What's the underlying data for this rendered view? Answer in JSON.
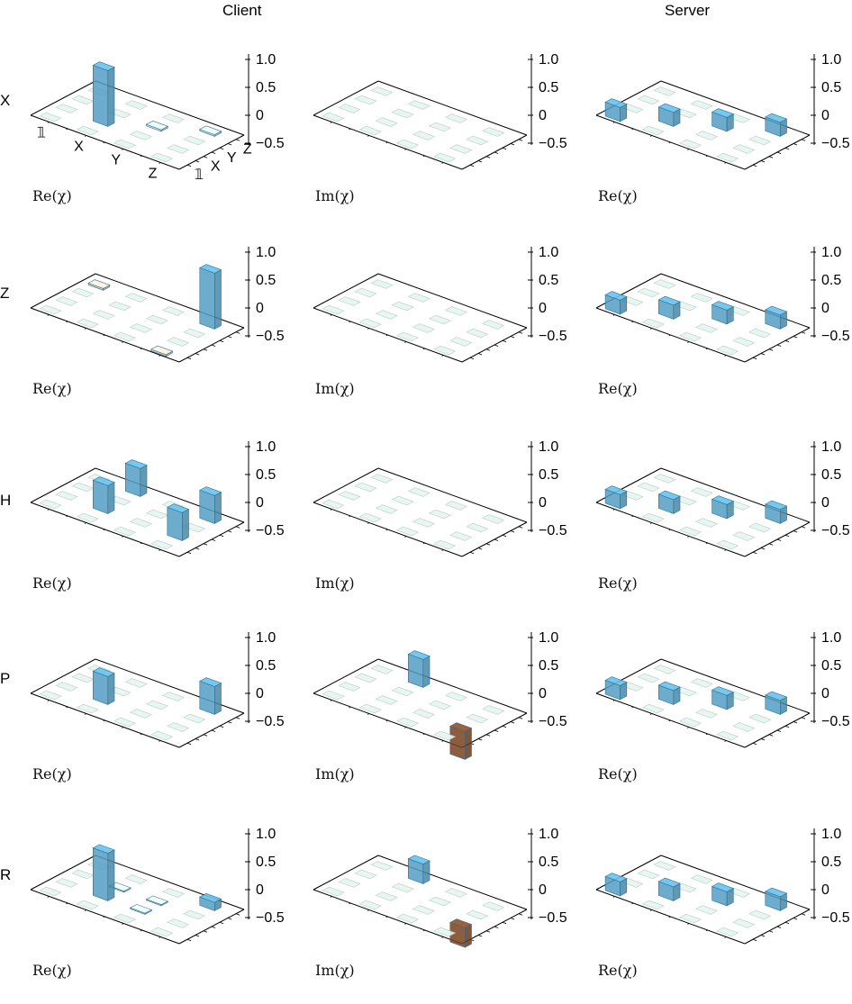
{
  "figure": {
    "column_titles": [
      "Client",
      "",
      "Server"
    ],
    "row_labels": [
      "X",
      "Z",
      "H",
      "P",
      "R"
    ]
  },
  "colors": {
    "positive_bar": "#5fb4de",
    "negative_bar": "#8a4a22",
    "base_tile": "#e6f5ef",
    "small_blue_tile": "#ddf3fb",
    "small_brown_tile": "#f0e0cf"
  },
  "chart_data": [
    {
      "type": "bar3d",
      "row": "X",
      "column": "Client",
      "label": "Re(χ)",
      "zlim": [
        -0.5,
        1.0
      ],
      "zticks": [
        "1.0",
        "0.5",
        "0",
        "−0.5"
      ],
      "x_labels": [
        "𝟙",
        "X",
        "Y",
        "Z"
      ],
      "y_labels": [
        "𝟙",
        "X",
        "Y",
        "Z"
      ],
      "values": [
        [
          0,
          0,
          0,
          0
        ],
        [
          0,
          1.0,
          0,
          0
        ],
        [
          0,
          0,
          0.03,
          0
        ],
        [
          0,
          0,
          0,
          0.03
        ]
      ]
    },
    {
      "type": "bar3d",
      "row": "X",
      "column": "",
      "label": "Im(χ)",
      "zlim": [
        -0.5,
        1.0
      ],
      "zticks": [
        "1.0",
        "0.5",
        "0",
        "−0.5"
      ],
      "values": [
        [
          0,
          0,
          0,
          0
        ],
        [
          0,
          0,
          0,
          0
        ],
        [
          0,
          0,
          0,
          0
        ],
        [
          0,
          0,
          0,
          0
        ]
      ]
    },
    {
      "type": "bar3d",
      "row": "X",
      "column": "Server",
      "label": "Re(χ)",
      "zlim": [
        -0.5,
        1.0
      ],
      "zticks": [
        "1.0",
        "0.5",
        "0",
        "−0.5"
      ],
      "values": [
        [
          0.25,
          0,
          0,
          0
        ],
        [
          0,
          0.25,
          0,
          0
        ],
        [
          0,
          0,
          0.25,
          0
        ],
        [
          0,
          0,
          0,
          0.25
        ]
      ]
    },
    {
      "type": "bar3d",
      "row": "Z",
      "column": "Client",
      "label": "Re(χ)",
      "zlim": [
        -0.5,
        1.0
      ],
      "zticks": [
        "1.0",
        "0.5",
        "0",
        "−0.5"
      ],
      "values": [
        [
          0,
          0,
          0,
          -0.03
        ],
        [
          0,
          0,
          0,
          0
        ],
        [
          0,
          0,
          0,
          0
        ],
        [
          -0.03,
          0,
          0,
          1.0
        ]
      ]
    },
    {
      "type": "bar3d",
      "row": "Z",
      "column": "",
      "label": "Im(χ)",
      "zlim": [
        -0.5,
        1.0
      ],
      "zticks": [
        "1.0",
        "0.5",
        "0",
        "−0.5"
      ],
      "values": [
        [
          0,
          0,
          0,
          0
        ],
        [
          0,
          0,
          0,
          0
        ],
        [
          0,
          0,
          0,
          0
        ],
        [
          0,
          0,
          0,
          0
        ]
      ]
    },
    {
      "type": "bar3d",
      "row": "Z",
      "column": "Server",
      "label": "Re(χ)",
      "zlim": [
        -0.5,
        1.0
      ],
      "zticks": [
        "1.0",
        "0.5",
        "0",
        "−0.5"
      ],
      "values": [
        [
          0.25,
          0,
          0,
          0
        ],
        [
          0,
          0.25,
          0,
          0
        ],
        [
          0,
          0,
          0.25,
          0
        ],
        [
          0,
          0,
          0,
          0.25
        ]
      ]
    },
    {
      "type": "bar3d",
      "row": "H",
      "column": "Client",
      "label": "Re(χ)",
      "zlim": [
        -0.5,
        1.0
      ],
      "zticks": [
        "1.0",
        "0.5",
        "0",
        "−0.5"
      ],
      "values": [
        [
          0,
          0,
          0,
          0
        ],
        [
          0,
          0.5,
          0,
          0.5
        ],
        [
          0,
          0,
          0,
          0
        ],
        [
          0,
          0.5,
          0,
          0.5
        ]
      ]
    },
    {
      "type": "bar3d",
      "row": "H",
      "column": "",
      "label": "Im(χ)",
      "zlim": [
        -0.5,
        1.0
      ],
      "zticks": [
        "1.0",
        "0.5",
        "0",
        "−0.5"
      ],
      "values": [
        [
          0,
          0,
          0,
          0
        ],
        [
          0,
          0,
          0,
          0
        ],
        [
          0,
          0,
          0,
          0
        ],
        [
          0,
          0,
          0,
          0
        ]
      ]
    },
    {
      "type": "bar3d",
      "row": "H",
      "column": "Server",
      "label": "Re(χ)",
      "zlim": [
        -0.5,
        1.0
      ],
      "zticks": [
        "1.0",
        "0.5",
        "0",
        "−0.5"
      ],
      "values": [
        [
          0.25,
          0,
          0,
          0
        ],
        [
          0,
          0.25,
          0,
          0
        ],
        [
          0,
          0,
          0.25,
          0
        ],
        [
          0,
          0,
          0,
          0.25
        ]
      ]
    },
    {
      "type": "bar3d",
      "row": "P",
      "column": "Client",
      "label": "Re(χ)",
      "zlim": [
        -0.5,
        1.0
      ],
      "zticks": [
        "1.0",
        "0.5",
        "0",
        "−0.5"
      ],
      "values": [
        [
          0,
          0,
          0,
          0
        ],
        [
          0,
          0.5,
          0,
          0
        ],
        [
          0,
          0,
          0,
          0
        ],
        [
          0,
          0,
          0,
          0.5
        ]
      ]
    },
    {
      "type": "bar3d",
      "row": "P",
      "column": "",
      "label": "Im(χ)",
      "zlim": [
        -0.5,
        1.0
      ],
      "zticks": [
        "1.0",
        "0.5",
        "0",
        "−0.5"
      ],
      "values": [
        [
          0,
          0,
          0,
          0
        ],
        [
          0,
          0,
          0,
          0.5
        ],
        [
          0,
          0,
          0,
          0
        ],
        [
          0,
          -0.5,
          0,
          0
        ]
      ]
    },
    {
      "type": "bar3d",
      "row": "P",
      "column": "Server",
      "label": "Re(χ)",
      "zlim": [
        -0.5,
        1.0
      ],
      "zticks": [
        "1.0",
        "0.5",
        "0",
        "−0.5"
      ],
      "values": [
        [
          0.25,
          0,
          0,
          0
        ],
        [
          0,
          0.25,
          0,
          0
        ],
        [
          0,
          0,
          0.25,
          0
        ],
        [
          0,
          0,
          0,
          0.25
        ]
      ]
    },
    {
      "type": "bar3d",
      "row": "R",
      "column": "Client",
      "label": "Re(χ)",
      "zlim": [
        -0.5,
        1.0
      ],
      "zticks": [
        "1.0",
        "0.5",
        "0",
        "−0.5"
      ],
      "values": [
        [
          0,
          0,
          0,
          0
        ],
        [
          0,
          0.85,
          0.02,
          0
        ],
        [
          0,
          0.02,
          0.02,
          0
        ],
        [
          0,
          0,
          0,
          0.15
        ]
      ]
    },
    {
      "type": "bar3d",
      "row": "R",
      "column": "",
      "label": "Im(χ)",
      "zlim": [
        -0.5,
        1.0
      ],
      "zticks": [
        "1.0",
        "0.5",
        "0",
        "−0.5"
      ],
      "values": [
        [
          0,
          0,
          0,
          0
        ],
        [
          0,
          0,
          0,
          0.35
        ],
        [
          0,
          0,
          0,
          0
        ],
        [
          0,
          -0.35,
          0,
          0
        ]
      ]
    },
    {
      "type": "bar3d",
      "row": "R",
      "column": "Server",
      "label": "Re(χ)",
      "zlim": [
        -0.5,
        1.0
      ],
      "zticks": [
        "1.0",
        "0.5",
        "0",
        "−0.5"
      ],
      "values": [
        [
          0.25,
          0,
          0,
          0
        ],
        [
          0,
          0.25,
          0,
          0
        ],
        [
          0,
          0,
          0.25,
          0
        ],
        [
          0,
          0,
          0,
          0.25
        ]
      ]
    }
  ]
}
